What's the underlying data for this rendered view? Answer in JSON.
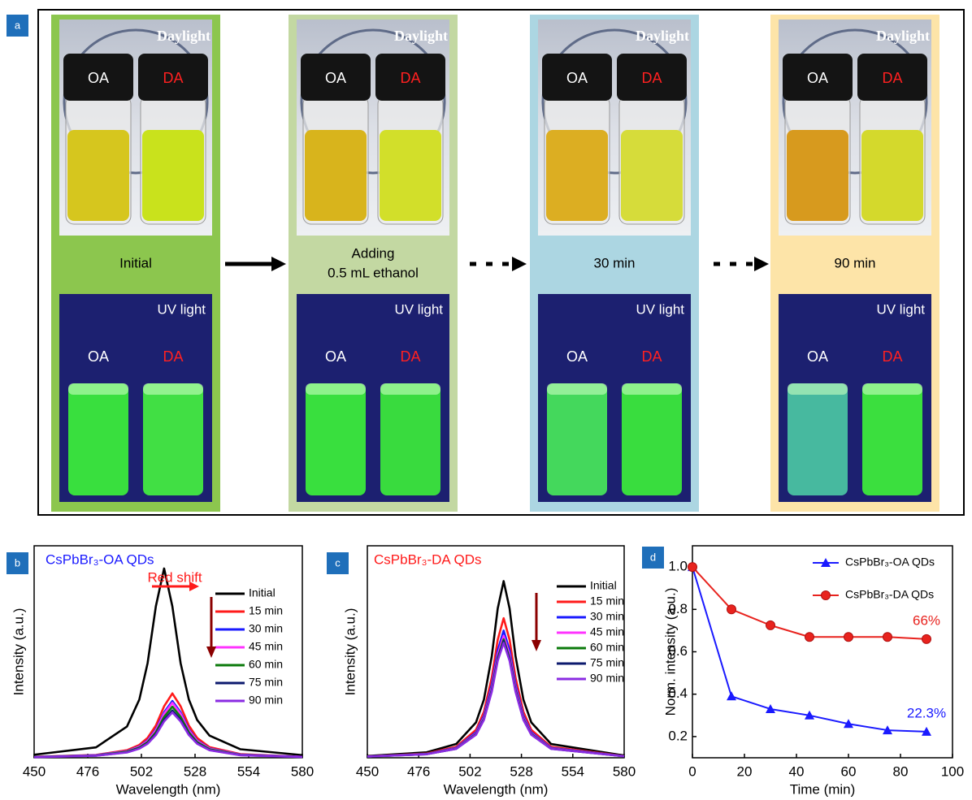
{
  "panel_a": {
    "label": "a",
    "stages": [
      {
        "top_label": "Daylight",
        "daylight_vials": [
          "OA",
          "DA"
        ],
        "caption": [
          "Initial"
        ],
        "bottom_label": "UV light",
        "uv_vials": [
          "OA",
          "DA"
        ]
      },
      {
        "top_label": "Daylight",
        "daylight_vials": [
          "OA",
          "DA"
        ],
        "caption": [
          "Adding",
          "0.5 mL ethanol"
        ],
        "bottom_label": "UV light",
        "uv_vials": [
          "OA",
          "DA"
        ]
      },
      {
        "top_label": "Daylight",
        "daylight_vials": [
          "OA",
          "DA"
        ],
        "caption": [
          "30 min"
        ],
        "bottom_label": "UV light",
        "uv_vials": [
          "OA",
          "DA"
        ]
      },
      {
        "top_label": "Daylight",
        "daylight_vials": [
          "OA",
          "DA"
        ],
        "caption": [
          "90 min"
        ],
        "bottom_label": "UV light",
        "uv_vials": [
          "OA",
          "DA"
        ]
      }
    ]
  },
  "chart_data": [
    {
      "type": "line",
      "panel_label": "b",
      "title": "CsPbBr₃-OA QDs",
      "title_color": "#1a1aff",
      "annotation": "Red shift",
      "x_label": "Wavelength (nm)",
      "y_label": "Intensity (a.u.)",
      "xlim": [
        450,
        580
      ],
      "xticks": [
        450,
        476,
        502,
        528,
        554,
        580
      ],
      "ylim": [
        0,
        1.12
      ],
      "x": [
        450,
        480,
        495,
        501,
        505,
        509,
        513,
        517,
        521,
        525,
        529,
        535,
        550,
        580
      ],
      "series": [
        {
          "name": "Initial",
          "color": "#000000",
          "values": [
            0.016,
            0.055,
            0.165,
            0.308,
            0.5,
            0.8,
            1,
            0.8,
            0.5,
            0.308,
            0.2,
            0.117,
            0.045,
            0.014
          ]
        },
        {
          "name": "15 min",
          "color": "#ff1a1a",
          "values": [
            0.005,
            0.015,
            0.04,
            0.068,
            0.105,
            0.17,
            0.272,
            0.34,
            0.272,
            0.17,
            0.105,
            0.056,
            0.019,
            0.005
          ]
        },
        {
          "name": "30 min",
          "color": "#1a1aff",
          "values": [
            0.004,
            0.014,
            0.035,
            0.06,
            0.092,
            0.15,
            0.24,
            0.3,
            0.24,
            0.15,
            0.092,
            0.05,
            0.017,
            0.005
          ]
        },
        {
          "name": "45 min",
          "color": "#ff33ff",
          "values": [
            0.004,
            0.013,
            0.034,
            0.058,
            0.089,
            0.145,
            0.232,
            0.29,
            0.232,
            0.145,
            0.089,
            0.048,
            0.016,
            0.005
          ]
        },
        {
          "name": "60 min",
          "color": "#0b7a0b",
          "values": [
            0.004,
            0.012,
            0.032,
            0.054,
            0.083,
            0.135,
            0.216,
            0.27,
            0.216,
            0.135,
            0.083,
            0.045,
            0.015,
            0.004
          ]
        },
        {
          "name": "75 min",
          "color": "#0c1a6e",
          "values": [
            0.004,
            0.011,
            0.029,
            0.05,
            0.077,
            0.125,
            0.2,
            0.25,
            0.2,
            0.125,
            0.077,
            0.041,
            0.014,
            0.004
          ]
        },
        {
          "name": "90 min",
          "color": "#8a2be2",
          "values": [
            0.003,
            0.011,
            0.028,
            0.048,
            0.074,
            0.12,
            0.192,
            0.24,
            0.192,
            0.12,
            0.074,
            0.04,
            0.013,
            0.004
          ]
        }
      ]
    },
    {
      "type": "line",
      "panel_label": "c",
      "title": "CsPbBr₃-DA QDs",
      "title_color": "#ff1a1a",
      "x_label": "Wavelength (nm)",
      "y_label": "Intensity (a.u.)",
      "xlim": [
        450,
        580
      ],
      "xticks": [
        450,
        476,
        502,
        528,
        554,
        580
      ],
      "ylim": [
        0,
        1.2
      ],
      "x": [
        450,
        480,
        495,
        505,
        509,
        513,
        516,
        519,
        522,
        525,
        529,
        533,
        543,
        580
      ],
      "series": [
        {
          "name": "Initial",
          "color": "#000000",
          "values": [
            0.01,
            0.031,
            0.078,
            0.2,
            0.329,
            0.576,
            0.845,
            1,
            0.845,
            0.576,
            0.329,
            0.2,
            0.078,
            0.013
          ]
        },
        {
          "name": "15 min",
          "color": "#ff1a1a",
          "values": [
            0.008,
            0.024,
            0.062,
            0.158,
            0.26,
            0.455,
            0.668,
            0.79,
            0.668,
            0.455,
            0.26,
            0.158,
            0.062,
            0.01
          ]
        },
        {
          "name": "30 min",
          "color": "#1a1aff",
          "values": [
            0.007,
            0.022,
            0.056,
            0.144,
            0.237,
            0.415,
            0.608,
            0.72,
            0.608,
            0.415,
            0.237,
            0.144,
            0.056,
            0.009
          ]
        },
        {
          "name": "45 min",
          "color": "#ff33ff",
          "values": [
            0.007,
            0.021,
            0.054,
            0.138,
            0.227,
            0.397,
            0.583,
            0.69,
            0.583,
            0.397,
            0.227,
            0.138,
            0.054,
            0.009
          ]
        },
        {
          "name": "60 min",
          "color": "#0b7a0b",
          "values": [
            0.007,
            0.021,
            0.052,
            0.134,
            0.22,
            0.386,
            0.566,
            0.67,
            0.566,
            0.386,
            0.22,
            0.134,
            0.052,
            0.009
          ]
        },
        {
          "name": "75 min",
          "color": "#0c1a6e",
          "values": [
            0.007,
            0.02,
            0.051,
            0.132,
            0.217,
            0.38,
            0.558,
            0.66,
            0.558,
            0.38,
            0.217,
            0.132,
            0.051,
            0.009
          ]
        },
        {
          "name": "90 min",
          "color": "#8a2be2",
          "values": [
            0.007,
            0.02,
            0.051,
            0.13,
            0.214,
            0.374,
            0.549,
            0.65,
            0.549,
            0.374,
            0.214,
            0.13,
            0.051,
            0.008
          ]
        }
      ]
    },
    {
      "type": "line",
      "panel_label": "d",
      "x_label": "Time (min)",
      "y_label": "Norm. intensity (a.u.)",
      "xlim": [
        0,
        100
      ],
      "xticks": [
        0,
        20,
        40,
        60,
        80,
        100
      ],
      "ylim": [
        0.1,
        1.1
      ],
      "yticks": [
        0.2,
        0.4,
        0.6,
        0.8,
        {
          "value": 1,
          "label": "1.0"
        }
      ],
      "x": [
        0,
        15,
        30,
        45,
        60,
        75,
        90
      ],
      "series": [
        {
          "name": "CsPbBr₃-OA QDs",
          "color": "#1a1aff",
          "marker": "triangle",
          "values": [
            1,
            0.39,
            0.33,
            0.3,
            0.26,
            0.23,
            0.223
          ],
          "value_labels": [
            null,
            null,
            null,
            null,
            null,
            null,
            "22.3%"
          ]
        },
        {
          "name": "CsPbBr₃-DA QDs",
          "color": "#e8231e",
          "marker": "circle",
          "values": [
            1,
            0.8,
            0.725,
            0.67,
            0.67,
            0.67,
            0.66
          ],
          "value_labels": [
            null,
            null,
            null,
            null,
            null,
            null,
            "66%"
          ]
        }
      ]
    }
  ]
}
